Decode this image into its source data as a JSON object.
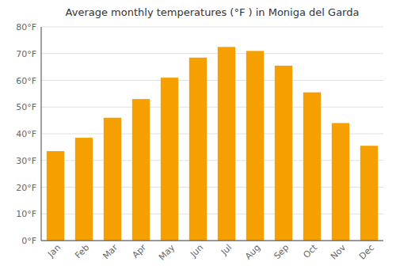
{
  "chart_data": {
    "type": "bar",
    "title": "Average monthly temperatures (°F ) in Moniga del Garda",
    "categories": [
      "Jan",
      "Feb",
      "Mar",
      "Apr",
      "May",
      "Jun",
      "Jul",
      "Aug",
      "Sep",
      "Oct",
      "Nov",
      "Dec"
    ],
    "values": [
      33.5,
      38.5,
      46.0,
      53.0,
      61.0,
      68.5,
      72.5,
      71.0,
      65.5,
      55.5,
      44.0,
      35.5
    ],
    "color": "#F5A000",
    "ylim": [
      0,
      80
    ],
    "yticks": [
      {
        "value": 0,
        "label": "0°F"
      },
      {
        "value": 10,
        "label": "10°F"
      },
      {
        "value": 20,
        "label": "20°F"
      },
      {
        "value": 30,
        "label": "30°F"
      },
      {
        "value": 40,
        "label": "40°F"
      },
      {
        "value": 50,
        "label": "50°F"
      },
      {
        "value": 60,
        "label": "60°F"
      },
      {
        "value": 70,
        "label": "70°F"
      },
      {
        "value": 80,
        "label": "80°F"
      }
    ],
    "grid": true
  }
}
